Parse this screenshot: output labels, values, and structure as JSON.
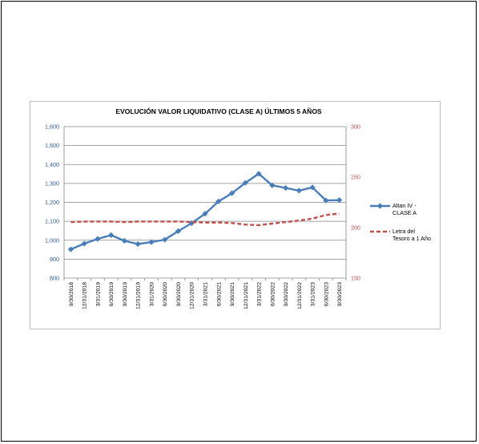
{
  "chart_data": {
    "type": "line",
    "title": "EVOLUCIÓN VALOR LIQUIDATIVO (CLASE A) ÚLTIMOS 5 AÑOS",
    "xlabel": "",
    "ylabel": "",
    "categories": [
      "9/30/2018",
      "12/31/2018",
      "3/31/2019",
      "6/30/2019",
      "9/30/2019",
      "12/31/2019",
      "3/31/2020",
      "6/30/2020",
      "9/30/2020",
      "12/31/2020",
      "3/31/2021",
      "6/30/2021",
      "9/30/2021",
      "12/31/2021",
      "3/31/2022",
      "6/30/2022",
      "9/30/2022",
      "12/31/2022",
      "3/31/2023",
      "6/30/2023",
      "9/30/2023"
    ],
    "y_left": {
      "ylim": [
        800,
        1600
      ],
      "ticks": [
        "800",
        "900",
        "1,000",
        "1,100",
        "1,200",
        "1,300",
        "1,400",
        "1,500",
        "1,600"
      ]
    },
    "y_right": {
      "ylim": [
        150,
        300
      ],
      "ticks": [
        "150",
        "200",
        "250",
        "300"
      ]
    },
    "grid": true,
    "legend_position": "right",
    "series": [
      {
        "name": "Altan IV - CLASE A",
        "legend_lines": [
          "Altan IV -",
          "CLASE A"
        ],
        "axis": "left",
        "color": "#4a7ebb",
        "style": "solid-diamond",
        "values": [
          952,
          982,
          1007,
          1027,
          997,
          980,
          990,
          1003,
          1048,
          1090,
          1140,
          1205,
          1248,
          1303,
          1351,
          1290,
          1276,
          1262,
          1279,
          1210,
          1212
        ]
      },
      {
        "name": "Letra del Tesoro a 1 Año",
        "legend_lines": [
          "Letra del",
          "Tesoro a 1 Año"
        ],
        "axis": "right",
        "color": "#c0504d",
        "style": "dashed",
        "values": [
          205.5,
          206.0,
          206.0,
          206.0,
          205.5,
          206.0,
          206.0,
          206.0,
          206.0,
          205.5,
          205.0,
          205.0,
          204.5,
          203.0,
          202.5,
          204.0,
          205.5,
          207.0,
          209.0,
          212.5,
          214.0
        ]
      }
    ]
  }
}
